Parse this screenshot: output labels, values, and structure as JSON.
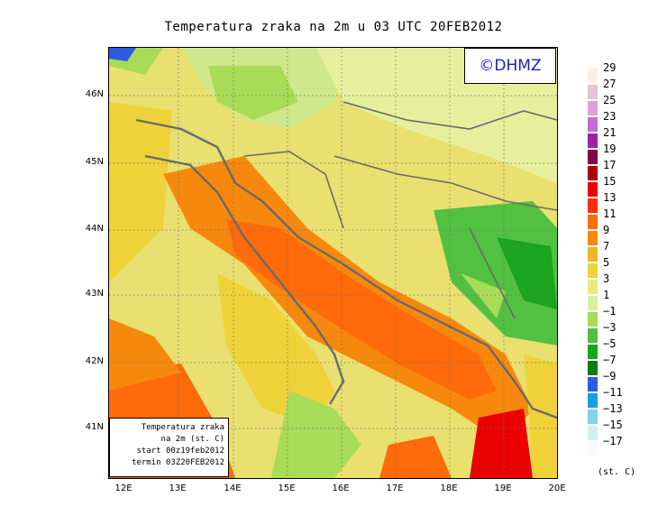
{
  "title": "Temperatura zraka na 2m u 03 UTC 20FEB2012",
  "logo_text": "©DHMZ",
  "info_box": {
    "line1": "Temperatura zraka",
    "line2": "na 2m (st. C)",
    "line3": "start 00z19feb2012",
    "line4": "termin 03Z20FEB2012"
  },
  "axes": {
    "lat_ticks": [
      "46N",
      "45N",
      "44N",
      "43N",
      "42N",
      "41N"
    ],
    "lon_ticks": [
      "12E",
      "13E",
      "14E",
      "15E",
      "16E",
      "17E",
      "18E",
      "19E",
      "20E"
    ]
  },
  "legend": {
    "unit": "(st. C)",
    "labels": [
      "29",
      "27",
      "25",
      "23",
      "21",
      "19",
      "17",
      "15",
      "13",
      "11",
      "9",
      "7",
      "5",
      "3",
      "1",
      "−1",
      "−3",
      "−5",
      "−7",
      "−9",
      "−11",
      "−13",
      "−15",
      "−17"
    ],
    "colors": [
      "#fbeee4",
      "#e0c6d6",
      "#e3a0d8",
      "#c86ad0",
      "#a020a4",
      "#7e0a46",
      "#b10000",
      "#ea0000",
      "#ff2f00",
      "#ff6a0a",
      "#f7880e",
      "#f2b428",
      "#efd23a",
      "#ede878",
      "#d9f09c",
      "#a8dc56",
      "#52c040",
      "#1aa420",
      "#0f7a10",
      "#2c5ce0",
      "#149ee6",
      "#86d0e8",
      "#cff0f2",
      "#f5fcfe"
    ]
  },
  "colors": {
    "sea_warm": "#ff6a0a",
    "coast_outline": "#6a6a6a",
    "logo_text": "#1d1dbd"
  }
}
